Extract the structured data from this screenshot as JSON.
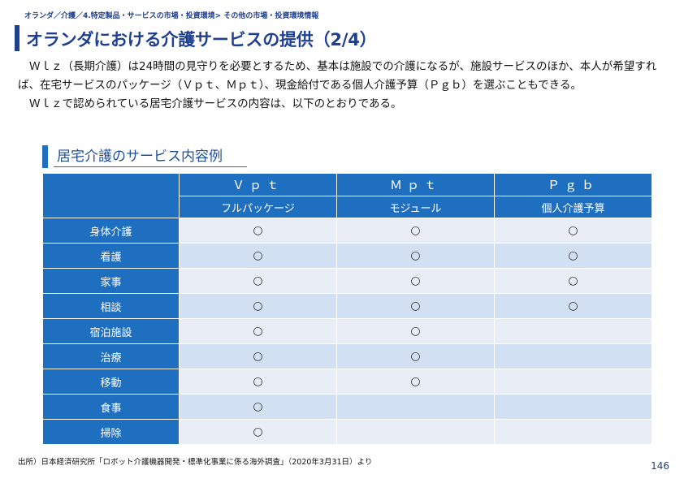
{
  "breadcrumb": "オランダ／介護／4.特定製品・サービスの市場・投資環境> その他の市場・投資環境情報",
  "page_title": "オランダにおける介護サービスの提供（2/4）",
  "paragraphs": [
    "Ｗｌｚ（長期介護）は24時間の見守りを必要とするため、基本は施設での介護になるが、施設サービスのほか、本人が希望すれば、在宅サービスのパッケージ（Ｖｐｔ、Ｍｐｔ）、現金給付である個人介護予算（Ｐｇｂ）を選ぶこともできる。",
    "Ｗｌｚで認められている居宅介護サービスの内容は、以下のとおりである。"
  ],
  "section_title": "居宅介護のサービス内容例",
  "table": {
    "columns": [
      {
        "code": "Ｖｐｔ",
        "name": "フルパッケージ"
      },
      {
        "code": "Ｍｐｔ",
        "name": "モジュール"
      },
      {
        "code": "Ｐｇｂ",
        "name": "個人介護予算"
      }
    ],
    "rows": [
      {
        "label": "身体介護",
        "cells": [
          "○",
          "○",
          "○"
        ]
      },
      {
        "label": "看護",
        "cells": [
          "○",
          "○",
          "○"
        ]
      },
      {
        "label": "家事",
        "cells": [
          "○",
          "○",
          "○"
        ]
      },
      {
        "label": "相談",
        "cells": [
          "○",
          "○",
          "○"
        ]
      },
      {
        "label": "宿泊施設",
        "cells": [
          "○",
          "○",
          ""
        ]
      },
      {
        "label": "治療",
        "cells": [
          "○",
          "○",
          ""
        ]
      },
      {
        "label": "移動",
        "cells": [
          "○",
          "○",
          ""
        ]
      },
      {
        "label": "食事",
        "cells": [
          "○",
          "",
          ""
        ]
      },
      {
        "label": "掃除",
        "cells": [
          "○",
          "",
          ""
        ]
      }
    ]
  },
  "source": "出所）日本経済研究所「ロボット介護機器開発・標準化事業に係る海外調査」（2020年3月31日）より",
  "page_number": "146"
}
